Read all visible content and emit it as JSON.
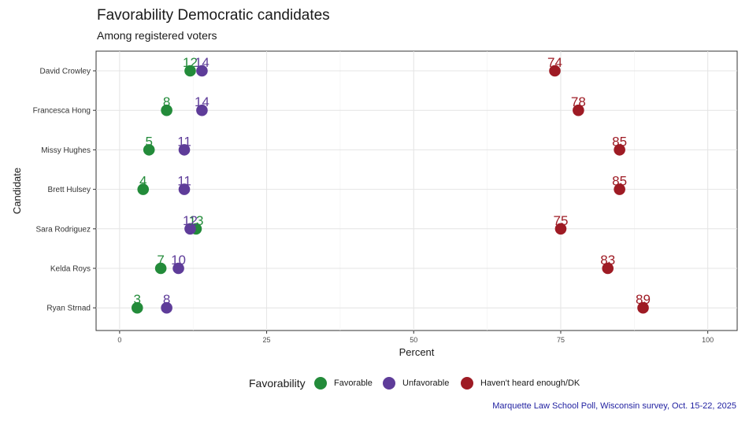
{
  "chart_data": {
    "type": "scatter",
    "title": "Favorability Democratic candidates",
    "subtitle": "Among registered voters",
    "xlabel": "Percent",
    "ylabel": "Candidate",
    "xlim": [
      -4,
      105
    ],
    "xticks": [
      0,
      25,
      50,
      75,
      100
    ],
    "xtick_labels": [
      "0",
      "25",
      "50",
      "75",
      "100"
    ],
    "categories": [
      "David Crowley",
      "Francesca Hong",
      "Missy Hughes",
      "Brett Hulsey",
      "Sara Rodriguez",
      "Kelda Roys",
      "Ryan Strnad"
    ],
    "series": [
      {
        "name": "Favorable",
        "color": "#238b3a",
        "values": [
          12,
          8,
          5,
          4,
          13,
          7,
          3
        ],
        "labels": [
          "12",
          "8",
          "5",
          "4",
          "13",
          "7",
          "3"
        ]
      },
      {
        "name": "Unfavorable",
        "color": "#5e3c99",
        "values": [
          14,
          14,
          11,
          11,
          12,
          10,
          8
        ],
        "labels": [
          "14",
          "14",
          "11",
          "11",
          "12",
          "10",
          "8"
        ]
      },
      {
        "name": "Haven't heard enough/DK",
        "color": "#9e1b24",
        "values": [
          74,
          78,
          85,
          85,
          75,
          83,
          89
        ],
        "labels": [
          "74",
          "78",
          "85",
          "85",
          "75",
          "83",
          "89"
        ]
      }
    ],
    "legend_title": "Favorability",
    "legend_position": "bottom",
    "grid": true
  },
  "caption": "Marquette Law School Poll, Wisconsin survey, Oct. 15-22, 2025"
}
